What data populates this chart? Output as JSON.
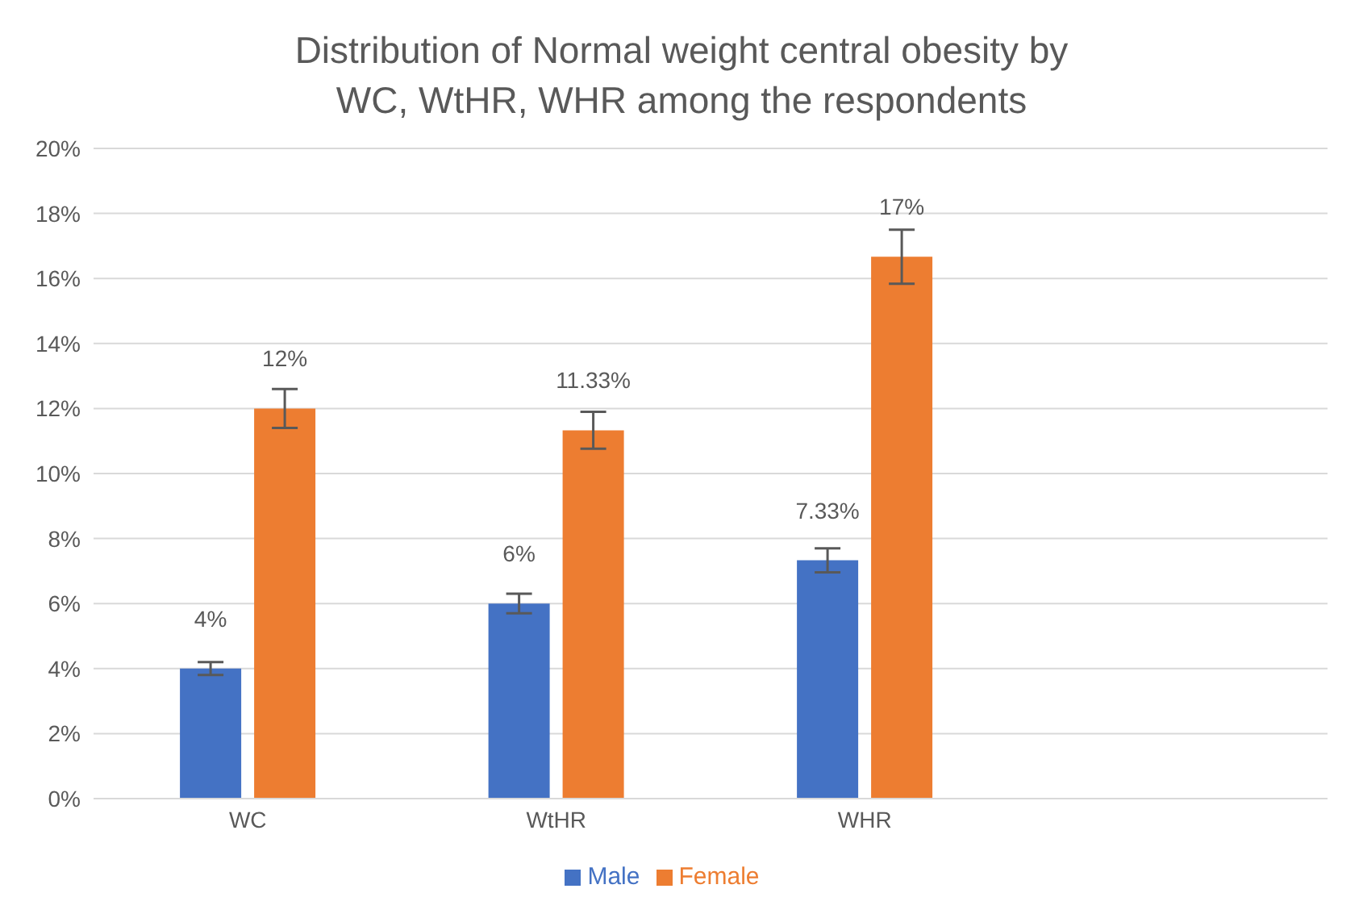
{
  "chart_data": {
    "type": "bar",
    "title": "Distribution of Normal weight central obesity by WC, WtHR, WHR among the respondents",
    "categories": [
      "WC",
      "WtHR",
      "WHR",
      null
    ],
    "series": [
      {
        "name": "Male",
        "color": "#4472c4",
        "values": [
          4,
          6,
          7.33,
          null
        ],
        "errors": [
          0.2,
          0.3,
          0.37,
          null
        ],
        "value_labels": [
          "4%",
          "6%",
          "7.33%",
          null
        ]
      },
      {
        "name": "Female",
        "color": "#ed7d31",
        "values": [
          12,
          11.33,
          16.67,
          null
        ],
        "errors": [
          0.6,
          0.57,
          0.83,
          null
        ],
        "value_labels": [
          "12%",
          "11.33%",
          "17%",
          null
        ]
      }
    ],
    "ylim": [
      0,
      20
    ],
    "yticks": [
      {
        "value": 0,
        "label": "0%"
      },
      {
        "value": 2,
        "label": "2%"
      },
      {
        "value": 4,
        "label": "4%"
      },
      {
        "value": 6,
        "label": "6%"
      },
      {
        "value": 8,
        "label": "8%"
      },
      {
        "value": 10,
        "label": "10%"
      },
      {
        "value": 12,
        "label": "12%"
      },
      {
        "value": 14,
        "label": "14%"
      },
      {
        "value": 16,
        "label": "16%"
      },
      {
        "value": 18,
        "label": "18%"
      },
      {
        "value": 20,
        "label": "20%"
      }
    ],
    "grid": "y",
    "legend": "bottom"
  }
}
